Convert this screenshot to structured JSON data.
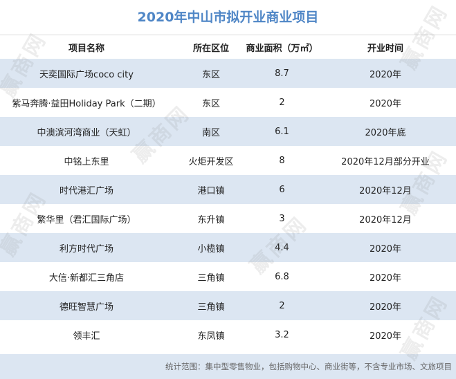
{
  "title": "2020年中山市拟开业商业项目",
  "columns": [
    "项目名称",
    "所在区位",
    "商业面积（万㎡）",
    "开业时间"
  ],
  "rows": [
    [
      "天奕国际广场coco city",
      "东区",
      "8.7",
      "2020年"
    ],
    [
      "紫马奔腾·益田Holiday Park（二期）",
      "东区",
      "2",
      "2020年"
    ],
    [
      "中澳滨河湾商业（天虹）",
      "南区",
      "6.1",
      "2020年底"
    ],
    [
      "中铭上东里",
      "火炬开发区",
      "8",
      "2020年12月部分开业"
    ],
    [
      "时代港汇广场",
      "港口镇",
      "6",
      "2020年12月"
    ],
    [
      "繁华里（君汇国际广场）",
      "东升镇",
      "3",
      "2020年12月"
    ],
    [
      "利方时代广场",
      "小榄镇",
      "4.4",
      "2020年"
    ],
    [
      "大信·新都汇三角店",
      "三角镇",
      "6.8",
      "2020年"
    ],
    [
      "德旺智慧广场",
      "三角镇",
      "2",
      "2020年"
    ],
    [
      "领丰汇",
      "东凤镇",
      "3.2",
      "2020年"
    ]
  ],
  "footer": "统计范围：集中型零售物业，包括购物中心、商业街等，不含专业市场、文旅项目",
  "watermark": "赢商网",
  "colors": {
    "title": "#4f86c6",
    "row_shade": "#dce6f2"
  }
}
